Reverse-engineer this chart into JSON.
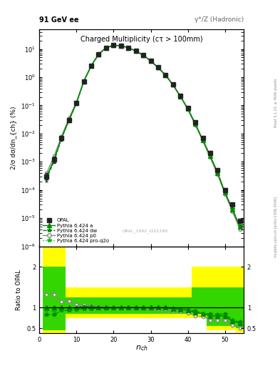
{
  "title_left": "91 GeV ee",
  "title_right": "γ*/Z (Hadronic)",
  "plot_title": "Charged Multiplicity",
  "plot_subtitle": "(cτ > 100mm)",
  "ylabel_main": "2/σ dσ/dn_{ch} (%)",
  "ylabel_ratio": "Ratio to OPAL",
  "xlabel": "n_{ch}",
  "watermark": "OPAL_1992_I321190",
  "rivet_text": "Rivet 3.1.10, ≥ 400k events",
  "mcplots_text": "mcplots.cern.ch [arXiv:1306.3436]",
  "nch": [
    2,
    4,
    6,
    8,
    10,
    12,
    14,
    16,
    18,
    20,
    22,
    24,
    26,
    28,
    30,
    32,
    34,
    36,
    38,
    40,
    42,
    44,
    46,
    48,
    50,
    52,
    54
  ],
  "opal_y": [
    0.0003,
    0.0012,
    0.007,
    0.03,
    0.12,
    0.7,
    2.5,
    6.5,
    11.0,
    13.5,
    13.0,
    11.0,
    8.5,
    6.0,
    3.8,
    2.2,
    1.2,
    0.55,
    0.22,
    0.08,
    0.025,
    0.007,
    0.002,
    0.0005,
    0.0001,
    3e-05,
    8e-06
  ],
  "opal_err": [
    0.0001,
    0.0003,
    0.0015,
    0.005,
    0.02,
    0.05,
    0.15,
    0.3,
    0.4,
    0.5,
    0.5,
    0.4,
    0.3,
    0.25,
    0.15,
    0.1,
    0.06,
    0.03,
    0.012,
    0.005,
    0.002,
    0.0006,
    0.0002,
    6e-05,
    1.5e-05,
    5e-06,
    1.5e-06
  ],
  "py_a_y": [
    0.0003,
    0.0012,
    0.007,
    0.03,
    0.12,
    0.72,
    2.55,
    6.6,
    11.1,
    13.6,
    13.1,
    11.1,
    8.5,
    6.0,
    3.8,
    2.2,
    1.2,
    0.54,
    0.21,
    0.075,
    0.022,
    0.006,
    0.0016,
    0.0004,
    8e-05,
    2e-05,
    5e-06
  ],
  "py_dw_y": [
    0.00025,
    0.001,
    0.0065,
    0.028,
    0.115,
    0.68,
    2.45,
    6.4,
    10.9,
    13.4,
    13.0,
    11.0,
    8.5,
    6.0,
    3.8,
    2.2,
    1.2,
    0.54,
    0.21,
    0.077,
    0.023,
    0.006,
    0.0017,
    0.00042,
    8.5e-05,
    2.1e-05,
    5.2e-06
  ],
  "py_p0_y": [
    0.0004,
    0.0016,
    0.008,
    0.035,
    0.13,
    0.75,
    2.6,
    6.7,
    11.2,
    13.5,
    13.0,
    11.0,
    8.4,
    5.9,
    3.7,
    2.1,
    1.15,
    0.51,
    0.2,
    0.07,
    0.02,
    0.0055,
    0.0014,
    0.00035,
    7e-05,
    1.7e-05,
    4e-06
  ],
  "py_q2o_y": [
    0.00028,
    0.0011,
    0.0068,
    0.029,
    0.118,
    0.7,
    2.52,
    6.55,
    11.05,
    13.55,
    13.05,
    11.05,
    8.5,
    6.0,
    3.8,
    2.2,
    1.2,
    0.54,
    0.21,
    0.076,
    0.022,
    0.006,
    0.0016,
    0.0004,
    8e-05,
    2e-05,
    5e-06
  ],
  "ratio_py_a": [
    1.0,
    1.0,
    1.0,
    1.0,
    1.0,
    1.03,
    1.02,
    1.015,
    1.01,
    1.007,
    1.008,
    1.009,
    1.0,
    1.0,
    1.0,
    1.0,
    1.0,
    0.98,
    0.955,
    0.94,
    0.88,
    0.857,
    0.8,
    0.8,
    0.8,
    0.67,
    0.625
  ],
  "ratio_py_dw": [
    0.83,
    0.83,
    0.93,
    0.93,
    0.96,
    0.97,
    0.98,
    0.985,
    0.99,
    0.993,
    0.998,
    1.0,
    1.0,
    1.0,
    1.0,
    1.0,
    1.0,
    0.98,
    0.955,
    0.96,
    0.92,
    0.857,
    0.85,
    0.84,
    0.85,
    0.7,
    0.65
  ],
  "ratio_py_p0": [
    1.33,
    1.33,
    1.14,
    1.17,
    1.08,
    1.07,
    1.04,
    1.03,
    1.018,
    1.0,
    1.0,
    1.0,
    0.988,
    0.983,
    0.974,
    0.955,
    0.958,
    0.927,
    0.909,
    0.875,
    0.8,
    0.786,
    0.7,
    0.7,
    0.7,
    0.567,
    0.5
  ],
  "ratio_py_q2o": [
    0.93,
    0.92,
    0.97,
    0.97,
    0.98,
    1.0,
    1.008,
    1.008,
    1.005,
    1.004,
    1.004,
    1.005,
    1.0,
    1.0,
    1.0,
    1.0,
    1.0,
    0.982,
    0.955,
    0.95,
    0.88,
    0.857,
    0.8,
    0.8,
    0.8,
    0.67,
    0.625
  ],
  "yellow_lo": [
    0.25,
    0.25,
    0.25,
    0.75,
    0.75,
    0.75,
    0.75,
    0.75,
    0.75,
    0.75,
    0.75,
    0.75,
    0.75,
    0.75,
    0.75,
    0.75,
    0.75,
    0.75,
    0.75,
    0.75,
    0.75,
    0.75,
    0.45,
    0.45,
    0.45,
    0.45,
    0.4
  ],
  "yellow_hi": [
    2.5,
    2.5,
    2.5,
    1.5,
    1.5,
    1.5,
    1.5,
    1.5,
    1.5,
    1.5,
    1.5,
    1.5,
    1.5,
    1.5,
    1.5,
    1.5,
    1.5,
    1.5,
    1.5,
    1.5,
    2.0,
    2.0,
    2.0,
    2.0,
    2.0,
    2.0,
    2.0
  ],
  "green_lo": [
    0.45,
    0.45,
    0.45,
    0.85,
    0.85,
    0.85,
    0.85,
    0.85,
    0.85,
    0.85,
    0.85,
    0.85,
    0.85,
    0.85,
    0.85,
    0.85,
    0.85,
    0.85,
    0.85,
    0.85,
    0.85,
    0.85,
    0.55,
    0.55,
    0.55,
    0.55,
    0.5
  ],
  "green_hi": [
    2.0,
    2.0,
    2.0,
    1.25,
    1.25,
    1.25,
    1.25,
    1.25,
    1.25,
    1.25,
    1.25,
    1.25,
    1.25,
    1.25,
    1.25,
    1.25,
    1.25,
    1.25,
    1.25,
    1.25,
    1.5,
    1.5,
    1.5,
    1.5,
    1.5,
    1.5,
    1.5
  ],
  "color_opal": "#222222",
  "color_py_a": "#008800",
  "color_py_dw": "#008800",
  "color_py_p0": "#888888",
  "color_py_q2o": "#00bb00",
  "color_yellow": "#ffff00",
  "color_green": "#00cc00",
  "xlim": [
    0,
    55
  ],
  "ylim_main_lo": 1e-06,
  "ylim_main_hi": 50,
  "ylim_ratio_lo": 0.38,
  "ylim_ratio_hi": 2.5
}
